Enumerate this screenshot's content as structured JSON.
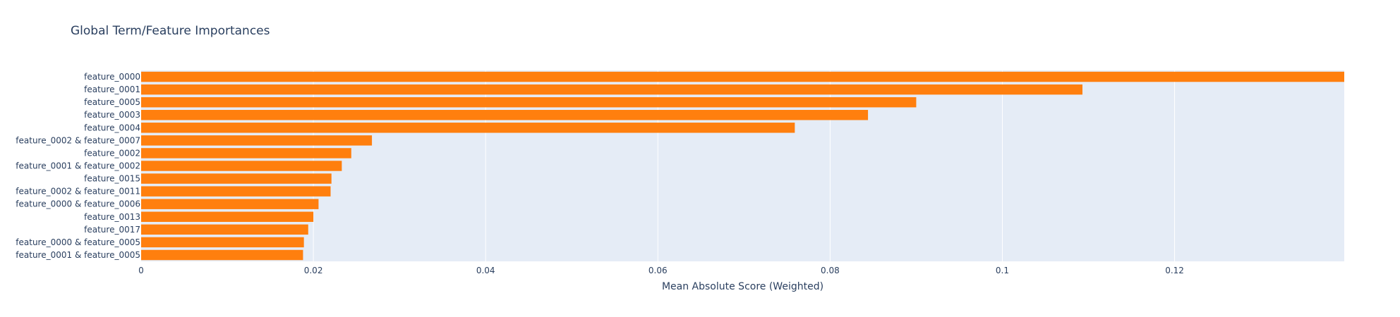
{
  "chart_data": {
    "type": "bar",
    "orientation": "horizontal",
    "title": "Global Term/Feature Importances",
    "xlabel": "Mean Absolute Score (Weighted)",
    "ylabel": "",
    "xlim": [
      0,
      0.1397
    ],
    "xticks": [
      "0",
      "0.02",
      "0.04",
      "0.06",
      "0.08",
      "0.1",
      "0.12"
    ],
    "grid": true,
    "bar_color": "#ff7f0e",
    "plot_bg": "#e5ecf6",
    "categories": [
      "feature_0000",
      "feature_0001",
      "feature_0005",
      "feature_0003",
      "feature_0004",
      "feature_0002 & feature_0007",
      "feature_0002",
      "feature_0001 & feature_0002",
      "feature_0015",
      "feature_0002 & feature_0011",
      "feature_0000 & feature_0006",
      "feature_0013",
      "feature_0017",
      "feature_0000 & feature_0005",
      "feature_0001 & feature_0005"
    ],
    "values": [
      0.1397,
      0.1093,
      0.09,
      0.0844,
      0.0759,
      0.0268,
      0.0244,
      0.0233,
      0.0221,
      0.022,
      0.0206,
      0.02,
      0.0194,
      0.0189,
      0.0188
    ]
  }
}
